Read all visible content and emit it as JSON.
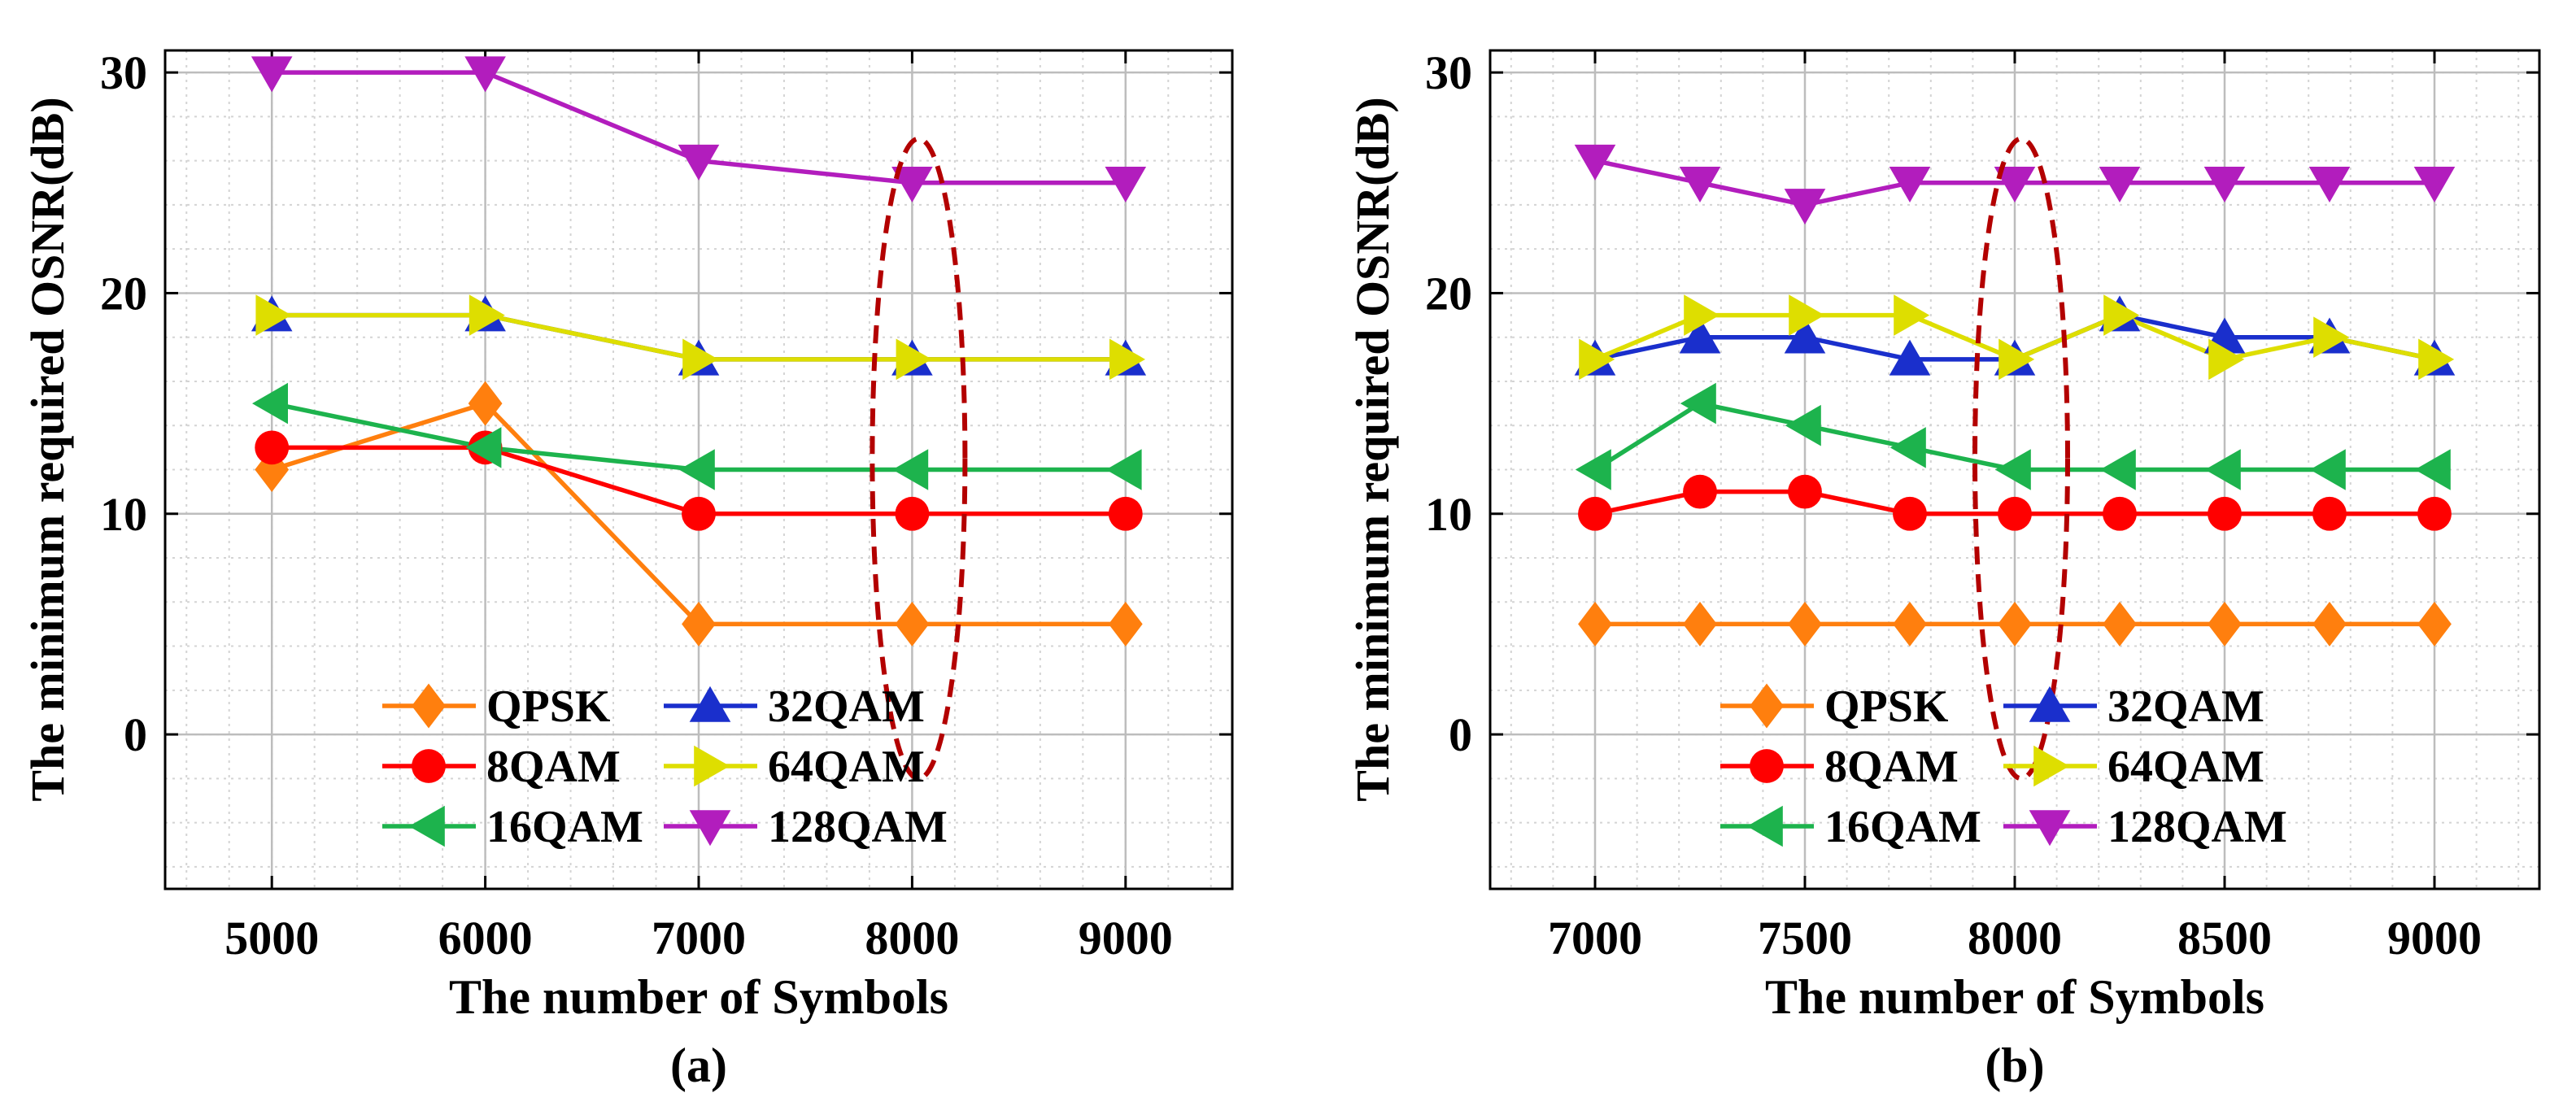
{
  "chart_data": [
    {
      "type": "line",
      "panel_label": "(a)",
      "xlabel": "The number of Symbols",
      "ylabel": "The minimum  required OSNR(dB)",
      "xlim": [
        4500,
        9500
      ],
      "ylim": [
        -7,
        31
      ],
      "xticks": [
        "5000",
        "6000",
        "7000",
        "8000",
        "9000"
      ],
      "yticks": [
        "0",
        "10",
        "20",
        "30"
      ],
      "grid": true,
      "legend_position": "bottom-center",
      "annotation": "dashed red ellipse around x = 8000",
      "x": [
        5000,
        6000,
        7000,
        8000,
        9000
      ],
      "series": [
        {
          "name": "QPSK",
          "color": "#ff7f0e",
          "marker": "diamond",
          "values": [
            12,
            15,
            5,
            5,
            5
          ]
        },
        {
          "name": "32QAM",
          "color": "#1a2fcc",
          "marker": "triangle-up",
          "values": [
            19,
            19,
            17,
            17,
            17
          ]
        },
        {
          "name": "8QAM",
          "color": "#ff0000",
          "marker": "circle",
          "values": [
            13,
            13,
            10,
            10,
            10
          ]
        },
        {
          "name": "64QAM",
          "color": "#dede00",
          "marker": "triangle-right",
          "values": [
            19,
            19,
            17,
            17,
            17
          ]
        },
        {
          "name": "16QAM",
          "color": "#1db34d",
          "marker": "triangle-left",
          "values": [
            15,
            13,
            12,
            12,
            12
          ]
        },
        {
          "name": "128QAM",
          "color": "#b21dbd",
          "marker": "triangle-down",
          "values": [
            30,
            30,
            26,
            25,
            25
          ]
        }
      ]
    },
    {
      "type": "line",
      "panel_label": "(b)",
      "xlabel": "The number of Symbols",
      "ylabel": "The minimum  required OSNR(dB)",
      "xlim": [
        6750,
        9250
      ],
      "ylim": [
        -7,
        31
      ],
      "xticks": [
        "7000",
        "7500",
        "8000",
        "8500",
        "9000"
      ],
      "yticks": [
        "0",
        "10",
        "20",
        "30"
      ],
      "grid": true,
      "legend_position": "bottom-center",
      "annotation": "dashed red ellipse around x = 8000",
      "x": [
        7000,
        7250,
        7500,
        7750,
        8000,
        8250,
        8500,
        8750,
        9000
      ],
      "series": [
        {
          "name": "QPSK",
          "color": "#ff7f0e",
          "marker": "diamond",
          "values": [
            5,
            5,
            5,
            5,
            5,
            5,
            5,
            5,
            5
          ]
        },
        {
          "name": "32QAM",
          "color": "#1a2fcc",
          "marker": "triangle-up",
          "values": [
            17,
            18,
            18,
            17,
            17,
            19,
            18,
            18,
            17
          ]
        },
        {
          "name": "8QAM",
          "color": "#ff0000",
          "marker": "circle",
          "values": [
            10,
            11,
            11,
            10,
            10,
            10,
            10,
            10,
            10
          ]
        },
        {
          "name": "64QAM",
          "color": "#dede00",
          "marker": "triangle-right",
          "values": [
            17,
            19,
            19,
            19,
            17,
            19,
            17,
            18,
            17
          ]
        },
        {
          "name": "16QAM",
          "color": "#1db34d",
          "marker": "triangle-left",
          "values": [
            12,
            15,
            14,
            13,
            12,
            12,
            12,
            12,
            12
          ]
        },
        {
          "name": "128QAM",
          "color": "#b21dbd",
          "marker": "triangle-down",
          "values": [
            26,
            25,
            24,
            25,
            25,
            25,
            25,
            25,
            25
          ]
        }
      ]
    }
  ]
}
